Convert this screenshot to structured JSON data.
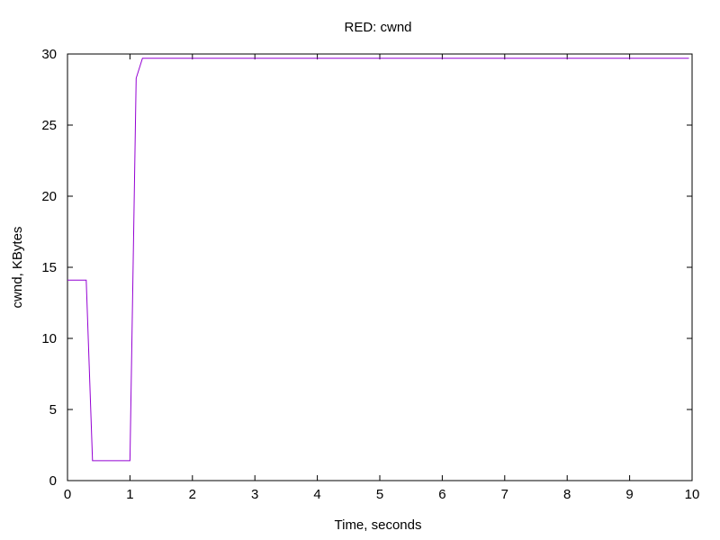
{
  "chart_data": {
    "type": "line",
    "title": "RED: cwnd",
    "xlabel": "Time, seconds",
    "ylabel": "cwnd, KBytes",
    "xlim": [
      0,
      10
    ],
    "ylim": [
      0,
      30
    ],
    "x_ticks": [
      "0",
      "1",
      "2",
      "3",
      "4",
      "5",
      "6",
      "7",
      "8",
      "9",
      "10"
    ],
    "y_ticks": [
      "0",
      "5",
      "10",
      "15",
      "20",
      "25",
      "30"
    ],
    "grid": false,
    "legend": "none",
    "series": [
      {
        "color": "#9400d3",
        "x": [
          0,
          0.3,
          0.4,
          1.0,
          1.1,
          1.2,
          9.95
        ],
        "y": [
          14.1,
          14.1,
          1.4,
          1.4,
          28.3,
          29.7,
          29.7
        ]
      }
    ]
  }
}
